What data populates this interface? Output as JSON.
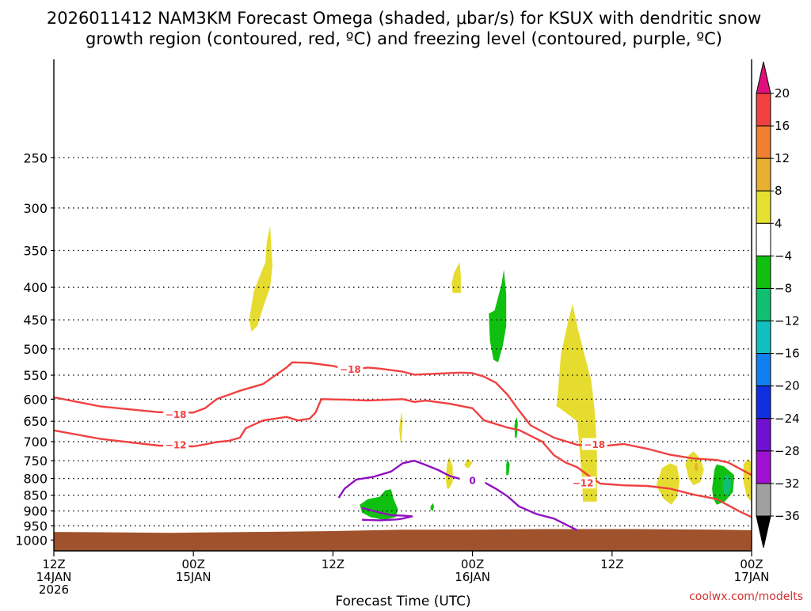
{
  "chart_data": {
    "type": "area",
    "title": {
      "line1": "2026011412 NAM3KM Forecast Omega (shaded, μbar/s) for KSUX with dendritic snow",
      "line2": "growth region (contoured, red, ºC) and freezing level (contoured, purple, ºC)"
    },
    "xlabel": "Forecast Time (UTC)",
    "credit": "coolwx.com/modelts",
    "x_range_hours": [
      0,
      60
    ],
    "y_range_hpa": [
      175,
      1040
    ],
    "y_log": true,
    "grid": true,
    "y_ticks": [
      250,
      300,
      350,
      400,
      450,
      500,
      550,
      600,
      650,
      700,
      750,
      800,
      850,
      900,
      950,
      1000
    ],
    "x_ticks": [
      {
        "h": 0,
        "lines": [
          "12Z",
          "14JAN",
          "2026"
        ]
      },
      {
        "h": 12,
        "lines": [
          "00Z",
          "15JAN"
        ]
      },
      {
        "h": 24,
        "lines": [
          "12Z"
        ]
      },
      {
        "h": 36,
        "lines": [
          "00Z",
          "16JAN"
        ]
      },
      {
        "h": 48,
        "lines": [
          "12Z"
        ]
      },
      {
        "h": 60,
        "lines": [
          "00Z",
          "17JAN"
        ]
      }
    ],
    "colorbar": {
      "labels": [
        "20",
        "16",
        "12",
        "8",
        "4",
        "−4",
        "−8",
        "−12",
        "−16",
        "−20",
        "−24",
        "−28",
        "−32",
        "−36"
      ],
      "colors": [
        "#e0107a",
        "#f04040",
        "#f08030",
        "#e8b030",
        "#e8e030",
        "#ffffff",
        "#10c010",
        "#10c070",
        "#10c0c0",
        "#1080f0",
        "#1030e0",
        "#7010d0",
        "#a010d0",
        "#a0a0a0",
        "#000000"
      ]
    },
    "ground": {
      "color": "#a0522d",
      "surface_pressure": [
        [
          0,
          971
        ],
        [
          10,
          974
        ],
        [
          20,
          970
        ],
        [
          24,
          968
        ],
        [
          30,
          963
        ],
        [
          36,
          963
        ],
        [
          42,
          961
        ],
        [
          50,
          961
        ],
        [
          57,
          963
        ],
        [
          60,
          965
        ]
      ]
    },
    "series": [
      {
        "label": "−18",
        "color": "#f04040",
        "points": [
          [
            0,
            596
          ],
          [
            4,
            616
          ],
          [
            9,
            629
          ],
          [
            12,
            630
          ],
          [
            13,
            620
          ],
          [
            14,
            600
          ],
          [
            16,
            582
          ],
          [
            18,
            568
          ],
          [
            19,
            551
          ],
          [
            20,
            535
          ],
          [
            20.5,
            525
          ],
          [
            22,
            526
          ],
          [
            24,
            532
          ],
          [
            25,
            537
          ],
          [
            26,
            538
          ],
          [
            27,
            535
          ],
          [
            28,
            537
          ],
          [
            30,
            543
          ],
          [
            31,
            549
          ],
          [
            33,
            547
          ],
          [
            35,
            545
          ],
          [
            36,
            546
          ],
          [
            37,
            553
          ],
          [
            38,
            565
          ],
          [
            39,
            590
          ],
          [
            40,
            625
          ],
          [
            41,
            660
          ],
          [
            43,
            690
          ],
          [
            45,
            708
          ],
          [
            47,
            712
          ],
          [
            49,
            706
          ],
          [
            51,
            718
          ],
          [
            53,
            734
          ],
          [
            55,
            744
          ],
          [
            57,
            748
          ],
          [
            58,
            755
          ],
          [
            60,
            790
          ]
        ],
        "labels_at": [
          [
            10.5,
            634
          ],
          [
            25.5,
            538
          ],
          [
            46.5,
            707
          ]
        ]
      },
      {
        "label": "−12",
        "color": "#f04040",
        "points": [
          [
            0,
            672
          ],
          [
            4,
            693
          ],
          [
            9,
            710
          ],
          [
            12,
            712
          ],
          [
            13,
            707
          ],
          [
            14,
            701
          ],
          [
            15,
            698
          ],
          [
            16,
            690
          ],
          [
            16.5,
            667
          ],
          [
            18,
            648
          ],
          [
            20,
            640
          ],
          [
            21,
            648
          ],
          [
            22,
            644
          ],
          [
            22.5,
            630
          ],
          [
            23,
            600
          ],
          [
            25,
            601
          ],
          [
            27,
            603
          ],
          [
            30,
            600
          ],
          [
            31,
            606
          ],
          [
            32,
            603
          ],
          [
            34,
            610
          ],
          [
            36,
            620
          ],
          [
            37,
            648
          ],
          [
            39,
            665
          ],
          [
            40,
            671
          ],
          [
            42,
            700
          ],
          [
            43,
            735
          ],
          [
            44,
            755
          ],
          [
            45,
            768
          ],
          [
            46,
            792
          ],
          [
            47,
            815
          ],
          [
            49,
            820
          ],
          [
            51,
            822
          ],
          [
            53,
            830
          ],
          [
            55,
            848
          ],
          [
            57,
            862
          ],
          [
            58,
            882
          ],
          [
            59,
            902
          ],
          [
            60,
            920
          ]
        ],
        "labels_at": [
          [
            10.5,
            708
          ],
          [
            45.5,
            813
          ]
        ]
      },
      {
        "label": "0",
        "color": "#9010c0",
        "points": [
          [
            24.5,
            858
          ],
          [
            25,
            830
          ],
          [
            26,
            803
          ],
          [
            27.5,
            795
          ],
          [
            29,
            780
          ],
          [
            30,
            757
          ],
          [
            31,
            750
          ],
          [
            32,
            762
          ],
          [
            33,
            775
          ],
          [
            34,
            792
          ],
          [
            35,
            802
          ],
          [
            36,
            805
          ],
          [
            37,
            811
          ],
          [
            38,
            830
          ],
          [
            39,
            853
          ],
          [
            40,
            885
          ],
          [
            41.5,
            910
          ],
          [
            43,
            925
          ],
          [
            44,
            945
          ],
          [
            45,
            965
          ]
        ],
        "labels_at": [
          [
            36,
            806
          ]
        ]
      },
      {
        "label": "",
        "color": "#9010c0",
        "points": [
          [
            26.5,
            890
          ],
          [
            28,
            905
          ],
          [
            29,
            914
          ],
          [
            30,
            915
          ],
          [
            30.8,
            918
          ],
          [
            30,
            925
          ],
          [
            29.5,
            928
          ],
          [
            28,
            931
          ],
          [
            26.5,
            929
          ]
        ],
        "labels_at": []
      }
    ],
    "shaded_regions": [
      {
        "color": "#e6dc30",
        "points": [
          [
            16.8,
            450
          ],
          [
            17.2,
            405
          ],
          [
            17.8,
            380
          ],
          [
            18.2,
            365
          ],
          [
            18.3,
            340
          ],
          [
            18.6,
            320
          ],
          [
            18.8,
            370
          ],
          [
            18.6,
            400
          ],
          [
            18.0,
            430
          ],
          [
            17.5,
            460
          ],
          [
            17.0,
            470
          ]
        ]
      },
      {
        "color": "#e6dc30",
        "points": [
          [
            34.2,
            395
          ],
          [
            34.4,
            380
          ],
          [
            34.9,
            365
          ],
          [
            35.0,
            384
          ],
          [
            35.0,
            408
          ],
          [
            34.3,
            408
          ]
        ]
      },
      {
        "color": "#e6dc30",
        "points": [
          [
            43.3,
            600
          ],
          [
            43.6,
            510
          ],
          [
            44.2,
            455
          ],
          [
            44.6,
            425
          ],
          [
            45.0,
            460
          ],
          [
            45.5,
            500
          ],
          [
            46.2,
            560
          ],
          [
            46.5,
            625
          ],
          [
            46.7,
            710
          ],
          [
            46.7,
            790
          ],
          [
            46.7,
            870
          ],
          [
            45.5,
            870
          ],
          [
            45.4,
            790
          ],
          [
            45.0,
            650
          ],
          [
            44.0,
            630
          ],
          [
            43.2,
            615
          ]
        ]
      },
      {
        "color": "#e6dc30",
        "points": [
          [
            29.7,
            670
          ],
          [
            29.8,
            645
          ],
          [
            29.9,
            628
          ],
          [
            30.0,
            650
          ],
          [
            29.9,
            695
          ],
          [
            29.8,
            700
          ]
        ]
      },
      {
        "color": "#e6dc30",
        "points": [
          [
            33.7,
            800
          ],
          [
            33.8,
            760
          ],
          [
            34.0,
            740
          ],
          [
            34.3,
            765
          ],
          [
            34.3,
            810
          ],
          [
            34.0,
            830
          ],
          [
            33.8,
            830
          ]
        ]
      },
      {
        "color": "#e6dc30",
        "points": [
          [
            35.3,
            760
          ],
          [
            35.6,
            745
          ],
          [
            36.0,
            755
          ],
          [
            35.7,
            770
          ],
          [
            35.4,
            768
          ]
        ]
      },
      {
        "color": "#e6dc30",
        "points": [
          [
            51.8,
            820
          ],
          [
            52.3,
            770
          ],
          [
            53.0,
            757
          ],
          [
            53.6,
            765
          ],
          [
            53.8,
            805
          ],
          [
            53.6,
            855
          ],
          [
            53.1,
            880
          ],
          [
            52.4,
            860
          ]
        ]
      },
      {
        "color": "#e6dc30",
        "points": [
          [
            54.3,
            760
          ],
          [
            54.6,
            735
          ],
          [
            55.0,
            725
          ],
          [
            55.6,
            745
          ],
          [
            55.9,
            775
          ],
          [
            55.6,
            810
          ],
          [
            55.0,
            820
          ],
          [
            54.6,
            800
          ]
        ]
      },
      {
        "color": "#e8b030",
        "points": [
          [
            55.1,
            758
          ],
          [
            55.3,
            755
          ],
          [
            55.4,
            770
          ],
          [
            55.3,
            780
          ],
          [
            55.1,
            775
          ]
        ]
      },
      {
        "color": "#e6dc30",
        "points": [
          [
            59.3,
            760
          ],
          [
            59.7,
            745
          ],
          [
            60,
            755
          ],
          [
            60,
            870
          ],
          [
            59.6,
            855
          ],
          [
            59.3,
            810
          ]
        ]
      },
      {
        "color": "#10c010",
        "points": [
          [
            37.5,
            485
          ],
          [
            37.4,
            440
          ],
          [
            37.9,
            435
          ],
          [
            38.5,
            395
          ],
          [
            38.7,
            375
          ],
          [
            38.9,
            410
          ],
          [
            38.9,
            460
          ],
          [
            38.6,
            495
          ],
          [
            38.2,
            525
          ],
          [
            37.8,
            520
          ]
        ]
      },
      {
        "color": "#10c010",
        "points": [
          [
            39.6,
            660
          ],
          [
            39.8,
            640
          ],
          [
            39.9,
            655
          ],
          [
            39.8,
            690
          ],
          [
            39.65,
            690
          ]
        ]
      },
      {
        "color": "#10c010",
        "points": [
          [
            38.9,
            760
          ],
          [
            39.0,
            745
          ],
          [
            39.2,
            760
          ],
          [
            39.1,
            790
          ],
          [
            38.9,
            790
          ]
        ]
      },
      {
        "color": "#10c010",
        "points": [
          [
            32.4,
            885
          ],
          [
            32.6,
            875
          ],
          [
            32.7,
            885
          ],
          [
            32.6,
            900
          ],
          [
            32.4,
            895
          ]
        ]
      },
      {
        "color": "#10c010",
        "points": [
          [
            26.3,
            880
          ],
          [
            27.0,
            862
          ],
          [
            28.0,
            855
          ],
          [
            28.5,
            835
          ],
          [
            29.0,
            832
          ],
          [
            29.2,
            860
          ],
          [
            29.6,
            895
          ],
          [
            29.4,
            920
          ],
          [
            28.4,
            930
          ],
          [
            27.2,
            920
          ],
          [
            26.5,
            905
          ]
        ]
      },
      {
        "color": "#10c010",
        "points": [
          [
            56.6,
            830
          ],
          [
            56.8,
            775
          ],
          [
            57.0,
            760
          ],
          [
            57.6,
            765
          ],
          [
            58.5,
            790
          ],
          [
            58.4,
            840
          ],
          [
            57.7,
            870
          ],
          [
            57.0,
            880
          ],
          [
            56.7,
            860
          ]
        ]
      },
      {
        "color": "#10c070",
        "points": [
          [
            57.5,
            820
          ],
          [
            57.7,
            790
          ],
          [
            58.1,
            790
          ],
          [
            58.3,
            820
          ],
          [
            58.0,
            850
          ],
          [
            57.6,
            845
          ]
        ]
      }
    ]
  }
}
